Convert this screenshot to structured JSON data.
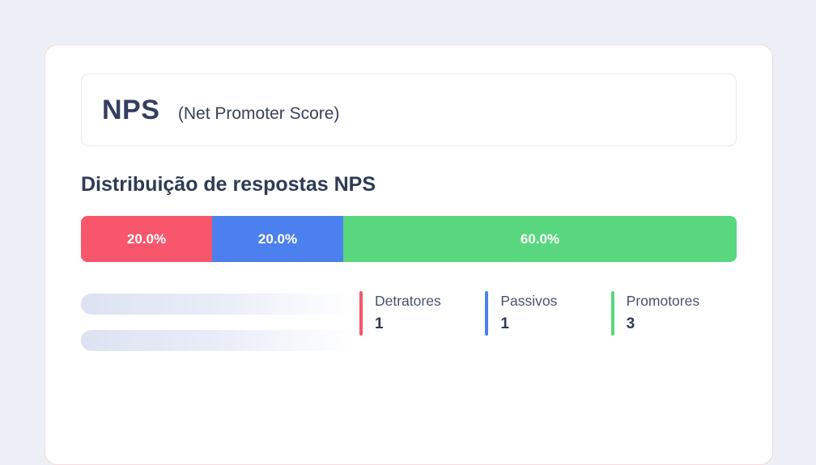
{
  "card": {
    "header": {
      "title": "NPS",
      "subtitle": "(Net Promoter Score)"
    },
    "section_title": "Distribuição de respostas NPS"
  },
  "chart_data": {
    "type": "bar",
    "variant": "stacked-horizontal-percentage",
    "title": "Distribuição de respostas NPS",
    "categories": [
      "Detratores",
      "Passivos",
      "Promotores"
    ],
    "values": [
      20.0,
      20.0,
      60.0
    ],
    "counts": [
      1,
      1,
      3
    ],
    "segments": [
      {
        "name": "Detratores",
        "percent": 20.0,
        "percent_label": "20.0%",
        "count": "1",
        "color": "#f8566b"
      },
      {
        "name": "Passivos",
        "percent": 20.0,
        "percent_label": "20.0%",
        "count": "1",
        "color": "#4c80ee"
      },
      {
        "name": "Promotores",
        "percent": 60.0,
        "percent_label": "60.0%",
        "count": "3",
        "color": "#58d77e"
      }
    ]
  }
}
